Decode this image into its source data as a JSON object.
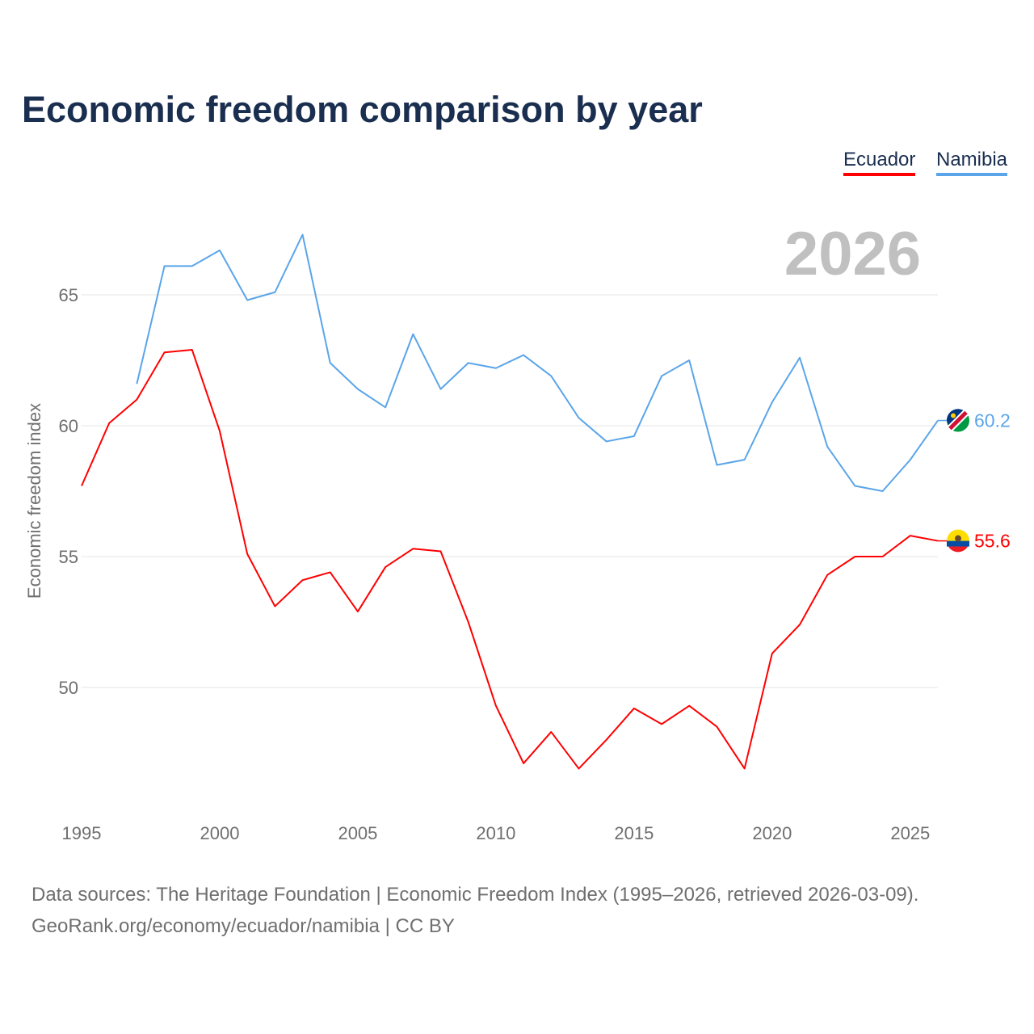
{
  "chart_data": {
    "type": "line",
    "title": "Economic freedom comparison by year",
    "xlabel": "",
    "ylabel": "Economic freedom index",
    "year_label": "2026",
    "xlim": [
      1995,
      2026
    ],
    "ylim": [
      46.5,
      68
    ],
    "x_ticks": [
      1995,
      2000,
      2005,
      2010,
      2015,
      2020,
      2025
    ],
    "y_ticks": [
      50,
      55,
      60,
      65
    ],
    "grid": true,
    "legend_position": "top-right",
    "series": [
      {
        "name": "Ecuador",
        "color": "#ff0000",
        "end_label": "55.6",
        "x": [
          1995,
          1996,
          1997,
          1998,
          1999,
          2000,
          2001,
          2002,
          2003,
          2004,
          2005,
          2006,
          2007,
          2008,
          2009,
          2010,
          2011,
          2012,
          2013,
          2014,
          2015,
          2016,
          2017,
          2018,
          2019,
          2020,
          2021,
          2022,
          2023,
          2024,
          2025,
          2026
        ],
        "values": [
          57.7,
          60.1,
          61.0,
          62.8,
          62.9,
          59.8,
          55.1,
          53.1,
          54.1,
          54.4,
          52.9,
          54.6,
          55.3,
          55.2,
          52.5,
          49.3,
          47.1,
          48.3,
          46.9,
          48.0,
          49.2,
          48.6,
          49.3,
          48.5,
          46.9,
          51.3,
          52.4,
          54.3,
          55.0,
          55.0,
          55.8,
          55.6
        ]
      },
      {
        "name": "Namibia",
        "color": "#5aa5ea",
        "end_label": "60.2",
        "x": [
          1997,
          1998,
          1999,
          2000,
          2001,
          2002,
          2003,
          2004,
          2005,
          2006,
          2007,
          2008,
          2009,
          2010,
          2011,
          2012,
          2013,
          2014,
          2015,
          2016,
          2017,
          2018,
          2019,
          2020,
          2021,
          2022,
          2023,
          2024,
          2025,
          2026
        ],
        "values": [
          61.6,
          66.1,
          66.1,
          66.7,
          64.8,
          65.1,
          67.3,
          62.4,
          61.4,
          60.7,
          63.5,
          61.4,
          62.4,
          62.2,
          62.7,
          61.9,
          60.3,
          59.4,
          59.6,
          61.9,
          62.5,
          58.5,
          58.7,
          60.9,
          62.6,
          59.2,
          57.7,
          57.5,
          58.7,
          60.2
        ]
      }
    ]
  },
  "footer": {
    "line1": "Data sources: The Heritage Foundation | Economic Freedom Index (1995–2026, retrieved 2026-03-09).",
    "line2": "GeoRank.org/economy/ecuador/namibia | CC BY"
  }
}
